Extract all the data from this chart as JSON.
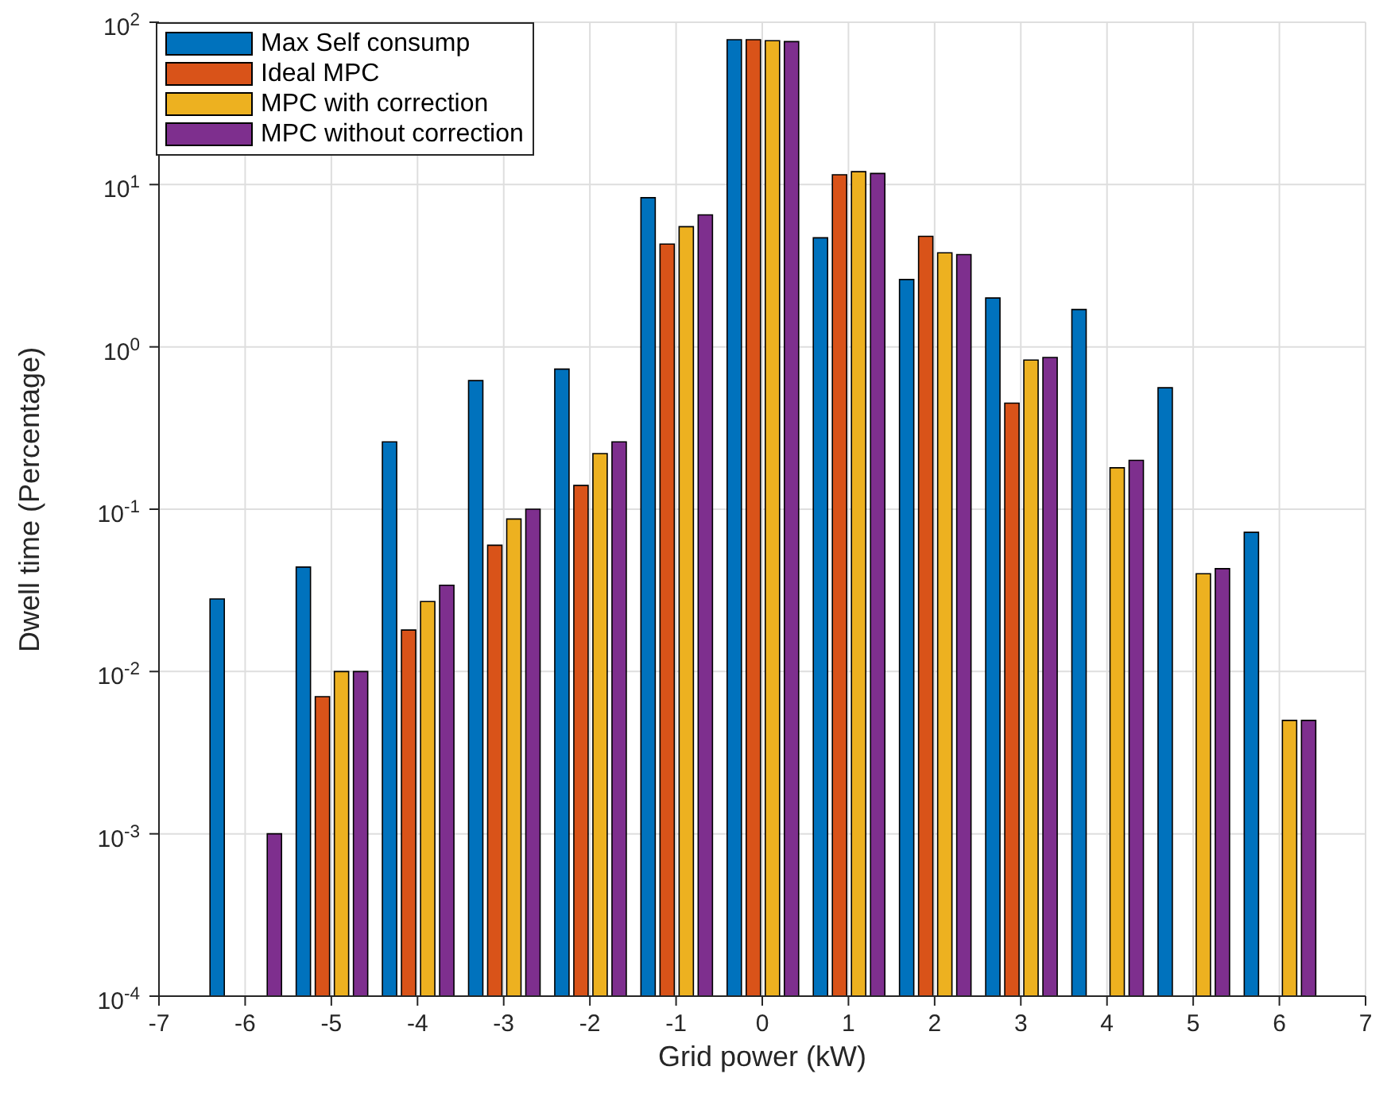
{
  "chart_data": {
    "type": "bar",
    "x": [
      -6,
      -5,
      -4,
      -3,
      -2,
      -1,
      0,
      1,
      2,
      3,
      4,
      5,
      6
    ],
    "xlabel": "Grid power (kW)",
    "ylabel": "Dwell time (Percentage)",
    "xlim": [
      -7,
      7
    ],
    "xticks": [
      -7,
      -6,
      -5,
      -4,
      -3,
      -2,
      -1,
      0,
      1,
      2,
      3,
      4,
      5,
      6,
      7
    ],
    "ylim": [
      0.0001,
      100
    ],
    "yticks": [
      {
        "value": 0.0001,
        "label": "10$^{-4}$"
      },
      {
        "value": 0.001,
        "label": "10$^{-3}$"
      },
      {
        "value": 0.01,
        "label": "10$^{-2}$"
      },
      {
        "value": 0.1,
        "label": "10$^{-1}$"
      },
      {
        "value": 1,
        "label": "10$^{0}$"
      },
      {
        "value": 10,
        "label": "10$^{1}$"
      },
      {
        "value": 100,
        "label": "10$^{2}$"
      }
    ],
    "log": "y",
    "grid": true,
    "legend": "top left",
    "series": [
      {
        "name": "Max Self consump",
        "color": "#0072bd",
        "values": [
          0.028,
          0.044,
          0.26,
          0.62,
          0.73,
          8.3,
          78,
          4.7,
          2.6,
          2.0,
          1.7,
          0.56,
          0.072
        ]
      },
      {
        "name": "Ideal MPC",
        "color": "#d95319",
        "values": [
          null,
          0.007,
          0.018,
          0.06,
          0.14,
          4.3,
          78,
          11.5,
          4.8,
          0.45,
          null,
          null,
          null
        ]
      },
      {
        "name": "MPC with correction",
        "color": "#edb120",
        "values": [
          null,
          0.01,
          0.027,
          0.087,
          0.22,
          5.5,
          77,
          12,
          3.8,
          0.83,
          0.18,
          0.04,
          0.005
        ]
      },
      {
        "name": "MPC without correction",
        "color": "#7e2f8e",
        "values": [
          0.001,
          0.01,
          0.034,
          0.1,
          0.26,
          6.5,
          76,
          11.7,
          3.7,
          0.86,
          0.2,
          0.043,
          0.005
        ]
      }
    ]
  }
}
